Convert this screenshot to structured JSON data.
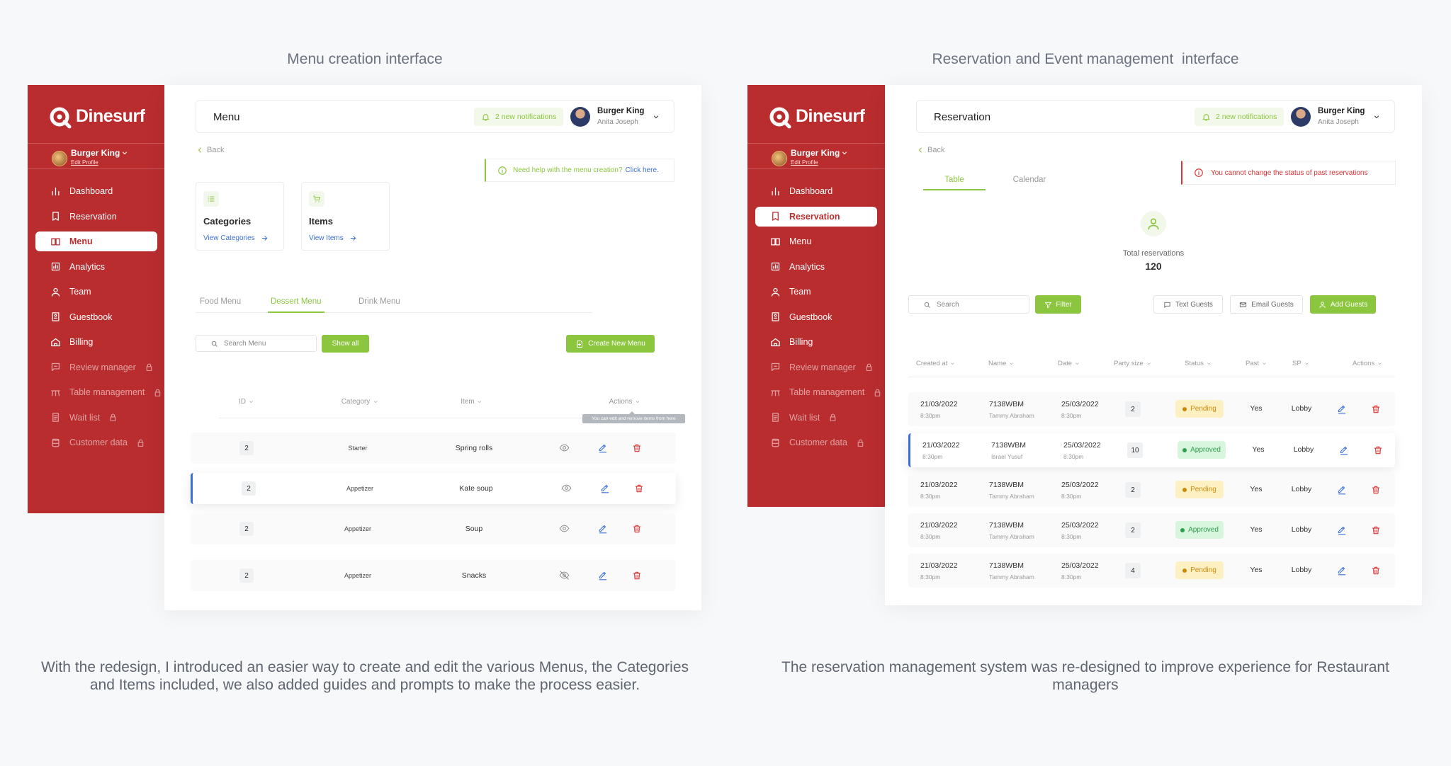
{
  "shared": {
    "brand": "Dinesurf",
    "restaurant": "Burger King",
    "edit_profile": "Edit Profile",
    "notifications": "2 new notifications",
    "user_company": "Burger King",
    "user_name": "Anita Joseph",
    "back": "Back",
    "nav": [
      {
        "label": "Dashboard",
        "locked": false
      },
      {
        "label": "Reservation",
        "locked": false
      },
      {
        "label": "Menu",
        "locked": false
      },
      {
        "label": "Analytics",
        "locked": false
      },
      {
        "label": "Team",
        "locked": false
      },
      {
        "label": "Guestbook",
        "locked": false
      },
      {
        "label": "Billing",
        "locked": false
      },
      {
        "label": "Review manager",
        "locked": true
      },
      {
        "label": "Table management",
        "locked": true
      },
      {
        "label": "Wait list",
        "locked": true
      },
      {
        "label": "Customer data",
        "locked": true
      }
    ]
  },
  "left": {
    "caption": "Menu creation interface",
    "page_title": "Menu",
    "active_nav": 2,
    "help": {
      "text": "Need help with the menu creation?",
      "link": "Click here."
    },
    "cards": [
      {
        "title": "Categories",
        "link": "View Categories"
      },
      {
        "title": "Items",
        "link": "View Items"
      }
    ],
    "tabs": [
      "Food Menu",
      "Dessert Menu",
      "Drink Menu"
    ],
    "active_tab": 1,
    "search_placeholder": "Search Menu",
    "show_all": "Show all",
    "create_button": "Create New Menu",
    "columns": [
      "ID",
      "Category",
      "Item",
      "Actions"
    ],
    "tooltip": "You can edit and remove items from here",
    "rows": [
      {
        "id": 2,
        "category": "Starter",
        "item": "Spring rolls",
        "visible": true
      },
      {
        "id": 2,
        "category": "Appetizer",
        "item": "Kate soup",
        "visible": true
      },
      {
        "id": 2,
        "category": "Appetizer",
        "item": "Soup",
        "visible": true
      },
      {
        "id": 2,
        "category": "Appetizer",
        "item": "Snacks",
        "visible": false
      }
    ],
    "highlighted_row": 1,
    "description": "With the redesign, I introduced an easier way to create and edit the various Menus, the Categories and Items included, we also added guides and prompts to make the process easier."
  },
  "right": {
    "caption": "Reservation and Event management  interface",
    "page_title": "Reservation",
    "active_nav": 1,
    "tabs": [
      "Table",
      "Calendar"
    ],
    "active_tab": 0,
    "alert": "You cannot change the status of past reservations",
    "total_label": "Total reservations",
    "total": 120,
    "search_placeholder": "Search",
    "filter": "Filter",
    "buttons": [
      "Text Guests",
      "Email Guests",
      "Add Guests"
    ],
    "columns": [
      "Created at",
      "Name",
      "Date",
      "Party size",
      "Status",
      "Past",
      "SP",
      "Actions"
    ],
    "rows": [
      {
        "created_date": "21/03/2022",
        "created_time": "8:30pm",
        "code": "7138WBM",
        "name": "Tammy Abraham",
        "date": "25/03/2022",
        "time": "8:30pm",
        "party_size": 2,
        "status": "Pending",
        "past": "Yes",
        "sp": "Lobby"
      },
      {
        "created_date": "21/03/2022",
        "created_time": "8:30pm",
        "code": "7138WBM",
        "name": "Israel Yusuf",
        "date": "25/03/2022",
        "time": "8:30pm",
        "party_size": 10,
        "status": "Approved",
        "past": "Yes",
        "sp": "Lobby"
      },
      {
        "created_date": "21/03/2022",
        "created_time": "8:30pm",
        "code": "7138WBM",
        "name": "Tammy Abraham",
        "date": "25/03/2022",
        "time": "8:30pm",
        "party_size": 2,
        "status": "Pending",
        "past": "Yes",
        "sp": "Lobby"
      },
      {
        "created_date": "21/03/2022",
        "created_time": "8:30pm",
        "code": "7138WBM",
        "name": "Tammy Abraham",
        "date": "25/03/2022",
        "time": "8:30pm",
        "party_size": 2,
        "status": "Approved",
        "past": "Yes",
        "sp": "Lobby"
      },
      {
        "created_date": "21/03/2022",
        "created_time": "8:30pm",
        "code": "7138WBM",
        "name": "Tammy Abraham",
        "date": "25/03/2022",
        "time": "8:30pm",
        "party_size": 4,
        "status": "Pending",
        "past": "Yes",
        "sp": "Lobby"
      }
    ],
    "status_colors": {
      "Pending": {
        "background": "#fdf1c4",
        "text": "#c98b0b"
      },
      "Approved": {
        "background": "#d7f6dd",
        "text": "#2f9e4f"
      }
    },
    "highlighted_row": 1,
    "description": "The reservation management system was re-designed to improve experience for Restaurant managers"
  }
}
